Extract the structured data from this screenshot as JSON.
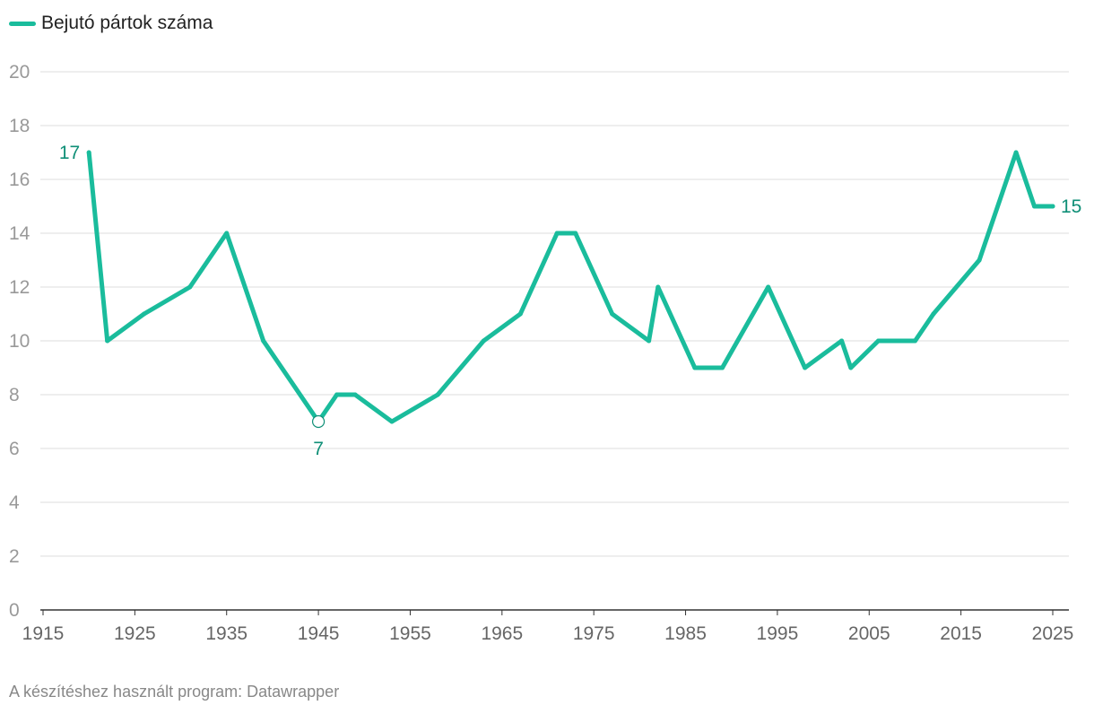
{
  "legend": {
    "label": "Bejutó pártok száma"
  },
  "footer": {
    "text": "A készítéshez használt program: Datawrapper"
  },
  "colors": {
    "line": "#1abc9c",
    "annotation": "#0f8f77",
    "grid": "#dddddd",
    "axis": "#333333",
    "tick_text": "#999999"
  },
  "chart_data": {
    "type": "line",
    "title": "",
    "xlabel": "",
    "ylabel": "",
    "xlim": [
      1915,
      2025
    ],
    "ylim": [
      0,
      20
    ],
    "x_ticks": [
      1915,
      1925,
      1935,
      1945,
      1955,
      1965,
      1975,
      1985,
      1995,
      2005,
      2015,
      2025
    ],
    "y_ticks": [
      0,
      2,
      4,
      6,
      8,
      10,
      12,
      14,
      16,
      18,
      20
    ],
    "grid": true,
    "legend_position": "top-left",
    "series": [
      {
        "name": "Bejutó pártok száma",
        "points": [
          [
            1920,
            17
          ],
          [
            1922,
            10
          ],
          [
            1926,
            11
          ],
          [
            1931,
            12
          ],
          [
            1935,
            14
          ],
          [
            1939,
            10
          ],
          [
            1945,
            7
          ],
          [
            1947,
            8
          ],
          [
            1949,
            8
          ],
          [
            1953,
            7
          ],
          [
            1958,
            8
          ],
          [
            1963,
            10
          ],
          [
            1967,
            11
          ],
          [
            1971,
            14
          ],
          [
            1973,
            14
          ],
          [
            1977,
            11
          ],
          [
            1981,
            10
          ],
          [
            1982,
            12
          ],
          [
            1986,
            9
          ],
          [
            1989,
            9
          ],
          [
            1994,
            12
          ],
          [
            1998,
            9
          ],
          [
            2002,
            10
          ],
          [
            2003,
            9
          ],
          [
            2006,
            10
          ],
          [
            2010,
            10
          ],
          [
            2012,
            11
          ],
          [
            2017,
            13
          ],
          [
            2021,
            17
          ],
          [
            2023,
            15
          ],
          [
            2025,
            15
          ]
        ]
      }
    ],
    "annotations": [
      {
        "x": 1920,
        "y": 17,
        "label": "17",
        "position": "left"
      },
      {
        "x": 1945,
        "y": 7,
        "label": "7",
        "position": "below",
        "marker": "circle"
      },
      {
        "x": 2025,
        "y": 15,
        "label": "15",
        "position": "right"
      }
    ]
  }
}
